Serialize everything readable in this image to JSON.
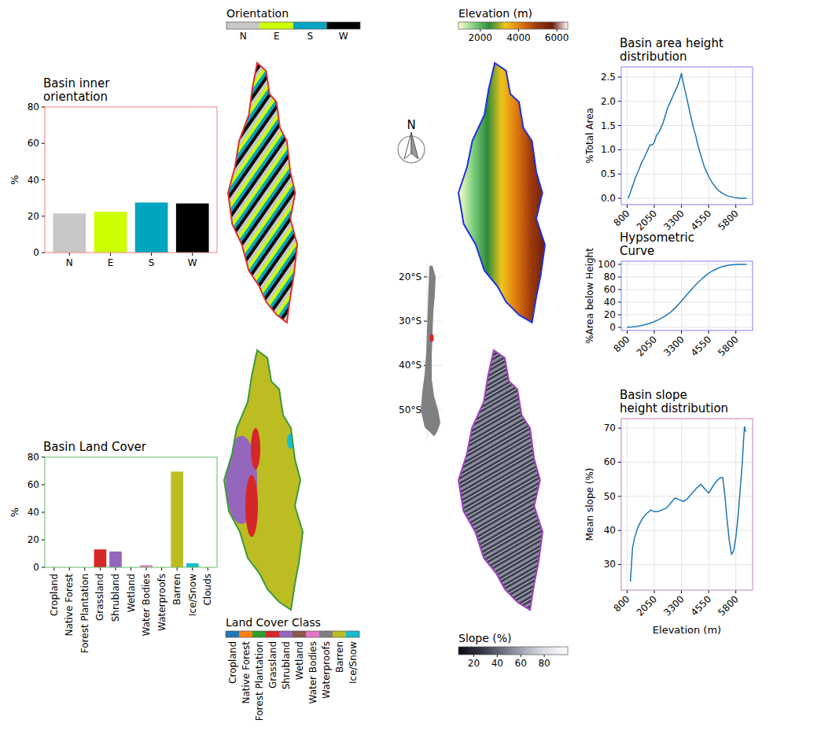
{
  "chart_data": [
    {
      "type": "bar",
      "title": "Basin inner orientation",
      "ylabel": "%",
      "categories": [
        "N",
        "E",
        "S",
        "W"
      ],
      "values": [
        21.5,
        22.5,
        27.5,
        27
      ],
      "colors": [
        "#c8c8c8",
        "#ccff00",
        "#00a6c0",
        "#000000"
      ],
      "ylim": [
        0,
        80
      ],
      "yticks": [
        0,
        20,
        40,
        60,
        80
      ]
    },
    {
      "type": "bar",
      "title": "Basin Land Cover",
      "ylabel": "%",
      "categories": [
        "Cropland",
        "Native Forest",
        "Forest Plantation",
        "Grassland",
        "Shrubland",
        "Wetland",
        "Water Bodies",
        "Waterproofs",
        "Barren",
        "Ice/Snow",
        "Clouds"
      ],
      "values": [
        0,
        0,
        0,
        13,
        11.5,
        0,
        1.5,
        0,
        69.5,
        3,
        0
      ],
      "colors": [
        "#1f77b4",
        "#ff7f0e",
        "#2ca02c",
        "#d62728",
        "#9467bd",
        "#8c564b",
        "#e377c2",
        "#7f7f7f",
        "#bcbd22",
        "#17becf",
        "#aec7e8"
      ],
      "ylim": [
        0,
        80
      ],
      "yticks": [
        0,
        20,
        40,
        60,
        80
      ]
    },
    {
      "type": "map",
      "title": "Orientation",
      "categories": [
        "N",
        "E",
        "S",
        "W"
      ],
      "colors": [
        "#c8c8c8",
        "#ccff00",
        "#00a6c0",
        "#000000"
      ]
    },
    {
      "type": "map",
      "title": "Land Cover Class",
      "categories": [
        "Cropland",
        "Native Forest",
        "Forest Plantation",
        "Grassland",
        "Shrubland",
        "Wetland",
        "Water Bodies",
        "Waterproofs",
        "Barren",
        "Ice/Snow"
      ],
      "colors": [
        "#1f77b4",
        "#ff7f0e",
        "#2ca02c",
        "#d62728",
        "#9467bd",
        "#8c564b",
        "#e377c2",
        "#7f7f7f",
        "#bcbd22",
        "#17becf"
      ]
    },
    {
      "type": "map",
      "title": "Elevation (m)",
      "colorbar_range": [
        860,
        6570
      ],
      "colorbar_ticks": [
        2000,
        4000,
        6000
      ],
      "colors": [
        "#ffffcc",
        "#7fd07f",
        "#2e8b3a",
        "#f0c419",
        "#e07a10",
        "#a03b0c",
        "#6b1d0a",
        "#ffffff"
      ]
    },
    {
      "type": "map",
      "title": "Slope (%)",
      "colorbar_range": [
        7,
        100
      ],
      "colorbar_ticks": [
        20,
        40,
        60,
        80
      ],
      "colors": [
        "#0c0c14",
        "#3f4050",
        "#8d8fa0",
        "#d5d7e0",
        "#ffffff"
      ]
    },
    {
      "type": "map",
      "ylim": [
        -17,
        -57
      ],
      "yticks": [
        {
          "value": -20,
          "label": "20°S"
        },
        {
          "value": -30,
          "label": "30°S"
        },
        {
          "value": -40,
          "label": "40°S"
        },
        {
          "value": -50,
          "label": "50°S"
        }
      ],
      "annotations": [
        "N"
      ]
    },
    {
      "type": "line",
      "title": "Basin area height distribution",
      "ylabel": "%Total Area",
      "color": "#1f77b4",
      "grid": true,
      "x": [
        850,
        950,
        1050,
        1150,
        1250,
        1350,
        1450,
        1550,
        1650,
        1750,
        1850,
        1950,
        2050,
        2150,
        2250,
        2350,
        2450,
        2550,
        2650,
        2750,
        2850,
        2950,
        3050,
        3150,
        3250,
        3300,
        3350,
        3450,
        3550,
        3650,
        3750,
        3850,
        3950,
        4050,
        4150,
        4250,
        4350,
        4450,
        4550,
        4700,
        4850,
        5000,
        5200,
        5400,
        5600,
        5800,
        6000,
        6200,
        6300
      ],
      "values": [
        0.0,
        0.12,
        0.25,
        0.38,
        0.5,
        0.6,
        0.72,
        0.8,
        0.9,
        1.0,
        1.1,
        1.1,
        1.15,
        1.3,
        1.35,
        1.45,
        1.55,
        1.7,
        1.85,
        1.95,
        2.05,
        2.15,
        2.25,
        2.35,
        2.5,
        2.58,
        2.45,
        2.25,
        2.05,
        1.85,
        1.65,
        1.45,
        1.3,
        1.1,
        0.95,
        0.8,
        0.65,
        0.55,
        0.45,
        0.33,
        0.24,
        0.16,
        0.1,
        0.05,
        0.03,
        0.01,
        0.0,
        0.0,
        0.0
      ],
      "xlim": [
        530,
        6570
      ],
      "xticks": [
        800,
        2050,
        3300,
        4550,
        5800
      ],
      "ylim": [
        -0.13,
        2.71
      ],
      "yticks": [
        {
          "value": 0,
          "label": "0.0"
        },
        0.5,
        {
          "value": 1,
          "label": "1.0"
        },
        1.5,
        {
          "value": 2,
          "label": "2.0"
        },
        2.5
      ]
    },
    {
      "type": "line",
      "title": "Hypsometric Curve",
      "ylabel": "%Area below Height",
      "color": "#1f77b4",
      "grid": true,
      "x": [
        800,
        1000,
        1200,
        1400,
        1600,
        1800,
        2050,
        2300,
        2550,
        2800,
        3050,
        3300,
        3550,
        3800,
        4050,
        4300,
        4550,
        4800,
        5050,
        5300,
        5550,
        5800,
        6050,
        6300
      ],
      "values": [
        0,
        0.5,
        1.2,
        2.5,
        4,
        6,
        9,
        13,
        18,
        24,
        32,
        42,
        52,
        62,
        71,
        79,
        86,
        91,
        95,
        97.5,
        99,
        99.6,
        99.9,
        100
      ],
      "xlim": [
        530,
        6570
      ],
      "xticks": [
        800,
        2050,
        3300,
        4550,
        5800
      ],
      "ylim": [
        -5,
        105
      ],
      "yticks": [
        0,
        20,
        40,
        60,
        80,
        100
      ]
    },
    {
      "type": "line",
      "title": "Basin slope height distribution",
      "ylabel": "Mean slope (%)",
      "xlabel": "Elevation (m)",
      "color": "#1f77b4",
      "grid": true,
      "x": [
        950,
        1000,
        1050,
        1150,
        1300,
        1500,
        1700,
        1900,
        2050,
        2200,
        2400,
        2600,
        2800,
        3000,
        3200,
        3400,
        3600,
        3800,
        4000,
        4200,
        4400,
        4550,
        4700,
        4850,
        5000,
        5100,
        5200,
        5300,
        5400,
        5500,
        5600,
        5700,
        5800,
        5900,
        6000,
        6100,
        6150,
        6200,
        6250
      ],
      "values": [
        25,
        30,
        35,
        38,
        41,
        43.5,
        45,
        46,
        45.5,
        45.5,
        46,
        46.5,
        48,
        49.5,
        49,
        48.5,
        49.5,
        51,
        52.5,
        53.5,
        52,
        51,
        52.5,
        54,
        55,
        55.5,
        55.5,
        50,
        43,
        37,
        33,
        34,
        38,
        44,
        52,
        60,
        66,
        70.5,
        69
      ],
      "xlim": [
        530,
        6570
      ],
      "xticks": [
        800,
        2050,
        3300,
        4550,
        5800
      ],
      "ylim": [
        22.5,
        72.8
      ],
      "yticks": [
        30,
        40,
        50,
        60,
        70
      ]
    }
  ]
}
